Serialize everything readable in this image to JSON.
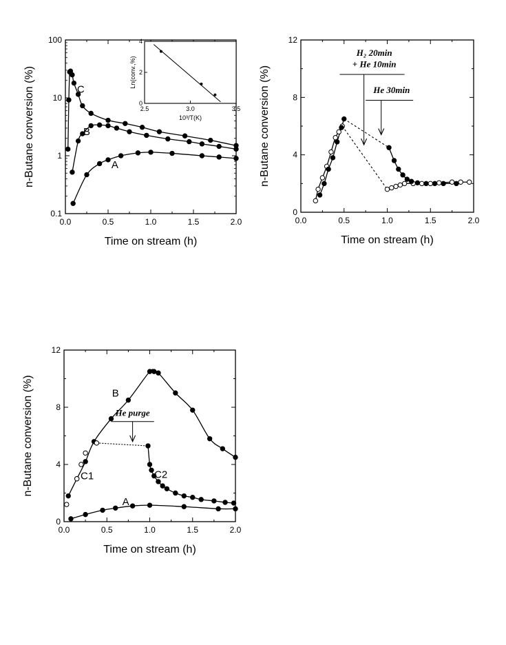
{
  "chart_data": [
    {
      "id": "p1",
      "type": "line",
      "scale_y": "log",
      "xlabel": "Time on stream (h)",
      "ylabel": "n-Butane conversion (%)",
      "xlim": [
        0,
        2.0
      ],
      "ylim": [
        0.1,
        100
      ],
      "xticks": [
        "0.0",
        "0.5",
        "1.0",
        "1.5",
        "2.0"
      ],
      "yticks": [
        "0.1",
        "1",
        "10",
        "100"
      ],
      "series": [
        {
          "name": "C",
          "marker": "filled",
          "x": [
            0.03,
            0.04,
            0.05,
            0.06,
            0.08,
            0.1,
            0.15,
            0.2,
            0.3,
            0.5,
            0.7,
            0.9,
            1.1,
            1.4,
            1.7,
            2.0
          ],
          "y": [
            1.3,
            9.2,
            28,
            29,
            25,
            18,
            11.5,
            7.3,
            5.4,
            4.1,
            3.6,
            3.1,
            2.6,
            2.2,
            1.85,
            1.5
          ]
        },
        {
          "name": "B",
          "marker": "filled",
          "x": [
            0.08,
            0.15,
            0.2,
            0.3,
            0.4,
            0.5,
            0.6,
            0.75,
            0.95,
            1.2,
            1.45,
            1.6,
            1.8,
            2.0
          ],
          "y": [
            0.52,
            1.8,
            2.4,
            3.3,
            3.4,
            3.3,
            3.0,
            2.6,
            2.25,
            1.95,
            1.75,
            1.6,
            1.45,
            1.3
          ]
        },
        {
          "name": "A",
          "marker": "filled",
          "x": [
            0.09,
            0.25,
            0.4,
            0.5,
            0.65,
            0.85,
            1.0,
            1.25,
            1.6,
            1.8,
            2.0
          ],
          "y": [
            0.15,
            0.47,
            0.73,
            0.85,
            1.0,
            1.12,
            1.15,
            1.1,
            1.0,
            0.95,
            0.9
          ]
        }
      ],
      "curve_labels": [
        {
          "text": "C",
          "x": 0.18,
          "y": 14
        },
        {
          "text": "B",
          "x": 0.25,
          "y": 2.6
        },
        {
          "text": "A",
          "x": 0.58,
          "y": 0.7
        }
      ],
      "inset": {
        "xlabel": "10³/T(K)",
        "ylabel": "Ln(conv.,%)",
        "xlim": [
          2.5,
          3.5
        ],
        "ylim": [
          0,
          4
        ],
        "xticks": [
          "2.5",
          "3.0",
          "3.5"
        ],
        "yticks": [
          "0",
          "2",
          "4"
        ],
        "x": [
          2.68,
          3.12,
          3.27
        ],
        "y": [
          3.35,
          1.25,
          0.55
        ],
        "fit": [
          [
            2.6,
            3.8
          ],
          [
            3.33,
            0.1
          ]
        ]
      }
    },
    {
      "id": "p2",
      "type": "line",
      "xlabel": "Time on stream (h)",
      "ylabel": "n-Butane conversion (%)",
      "xlim": [
        0,
        2.0
      ],
      "ylim": [
        0,
        12
      ],
      "xticks": [
        "0.0",
        "0.5",
        "1.0",
        "1.5",
        "2.0"
      ],
      "yticks": [
        "0",
        "4",
        "8",
        "12"
      ],
      "series": [
        {
          "name": "",
          "marker": "filled",
          "x": [
            0.22,
            0.27,
            0.32,
            0.37,
            0.42,
            0.47,
            0.5,
            1.02,
            1.08,
            1.13,
            1.18,
            1.23,
            1.28,
            1.35,
            1.45,
            1.55,
            1.65,
            1.8
          ],
          "y": [
            1.2,
            2.0,
            3.0,
            3.8,
            4.9,
            5.9,
            6.5,
            4.5,
            3.6,
            3.0,
            2.6,
            2.3,
            2.15,
            2.05,
            2.0,
            2.0,
            2.0,
            2.0
          ]
        },
        {
          "name": "",
          "marker": "open",
          "x": [
            0.17,
            0.2,
            0.25,
            0.3,
            0.35,
            0.4,
            0.44,
            0.48,
            1.0,
            1.05,
            1.1,
            1.15,
            1.2,
            1.3,
            1.4,
            1.5,
            1.6,
            1.75,
            1.85,
            1.95
          ],
          "y": [
            0.8,
            1.6,
            2.4,
            3.2,
            4.2,
            5.2,
            5.6,
            6.0,
            1.6,
            1.7,
            1.8,
            1.9,
            2.0,
            2.0,
            2.0,
            2.0,
            2.05,
            2.1,
            2.1,
            2.1
          ]
        }
      ],
      "annotations": [
        {
          "text": "H₂ 20min",
          "x": 0.85,
          "y": 10.9
        },
        {
          "text": "+ He 10min",
          "x": 0.85,
          "y": 10.1
        },
        {
          "text": "He 30min",
          "x": 1.05,
          "y": 8.3
        }
      ]
    },
    {
      "id": "p3",
      "type": "line",
      "xlabel": "Time on stream (h)",
      "ylabel": "n-Butane conversion (%)",
      "xlim": [
        0,
        2.0
      ],
      "ylim": [
        0,
        12
      ],
      "xticks": [
        "0.0",
        "0.5",
        "1.0",
        "1.5",
        "2.0"
      ],
      "yticks": [
        "0",
        "4",
        "8",
        "12"
      ],
      "series": [
        {
          "name": "B",
          "marker": "filled",
          "x": [
            0.05,
            0.15,
            0.25,
            0.35,
            0.55,
            0.75,
            1.0,
            1.05,
            1.1,
            1.3,
            1.5,
            1.7,
            1.85,
            2.0
          ],
          "y": [
            1.8,
            3.0,
            4.2,
            5.6,
            7.2,
            8.5,
            10.5,
            10.5,
            10.4,
            9.0,
            7.8,
            5.8,
            5.1,
            4.5
          ]
        },
        {
          "name": "C1",
          "marker": "open",
          "x": [
            0.03,
            0.15,
            0.2,
            0.25,
            0.38
          ],
          "y": [
            1.2,
            3.0,
            4.0,
            4.8,
            5.5
          ]
        },
        {
          "name": "C2",
          "marker": "filled",
          "x": [
            0.98,
            1.0,
            1.02,
            1.05,
            1.1,
            1.15,
            1.2,
            1.3,
            1.4,
            1.5,
            1.6,
            1.75,
            1.88,
            1.98
          ],
          "y": [
            5.3,
            4.0,
            3.6,
            3.2,
            2.8,
            2.5,
            2.3,
            2.0,
            1.8,
            1.7,
            1.55,
            1.45,
            1.35,
            1.3
          ]
        },
        {
          "name": "A",
          "marker": "filled",
          "x": [
            0.08,
            0.25,
            0.45,
            0.6,
            0.8,
            1.0,
            1.4,
            1.8,
            2.0
          ],
          "y": [
            0.2,
            0.5,
            0.8,
            0.95,
            1.1,
            1.15,
            1.05,
            0.9,
            0.9
          ]
        }
      ],
      "curve_labels": [
        {
          "text": "B",
          "x": 0.6,
          "y": 9.0
        },
        {
          "text": "C1",
          "x": 0.27,
          "y": 3.2
        },
        {
          "text": "C2",
          "x": 1.13,
          "y": 3.3
        },
        {
          "text": "A",
          "x": 0.72,
          "y": 1.4
        }
      ],
      "annotations": [
        {
          "text": "He purge",
          "x": 0.8,
          "y": 7.4
        }
      ]
    }
  ]
}
